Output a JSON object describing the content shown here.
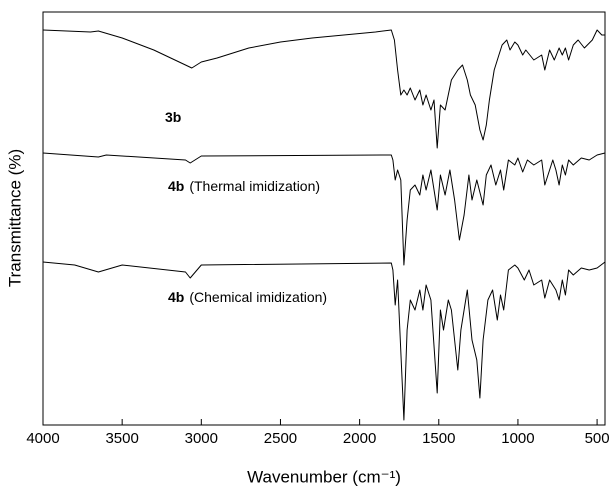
{
  "chart_data": {
    "type": "line",
    "xlabel": "Wavenumber (cm⁻¹)",
    "ylabel": "Transmittance (%)",
    "xlim": [
      4000,
      450
    ],
    "ylim": [
      0,
      413
    ],
    "xticks": [
      4000,
      3500,
      3000,
      2500,
      2000,
      1500,
      1000,
      500
    ],
    "annotations": [
      {
        "bold": "3b"
      },
      {
        "bold": "4b",
        "text": "(Thermal imidization)"
      },
      {
        "bold": "4b",
        "text": "(Chemical imidization)"
      }
    ],
    "series": [
      {
        "color": "#000000",
        "x": [
          4000,
          3700,
          3650,
          3500,
          3300,
          3100,
          3060,
          3000,
          2900,
          2700,
          2500,
          2300,
          2100,
          1900,
          1800,
          1780,
          1760,
          1740,
          1720,
          1700,
          1680,
          1650,
          1620,
          1600,
          1580,
          1550,
          1530,
          1510,
          1490,
          1460,
          1420,
          1380,
          1350,
          1320,
          1300,
          1270,
          1240,
          1220,
          1200,
          1180,
          1150,
          1120,
          1100,
          1070,
          1050,
          1020,
          1000,
          970,
          950,
          900,
          850,
          830,
          800,
          770,
          740,
          720,
          700,
          680,
          650,
          620,
          580,
          530,
          500,
          470,
          450
        ],
        "values": [
          395,
          393,
          394,
          387,
          375,
          360,
          357,
          363,
          367,
          377,
          383,
          387,
          390,
          393,
          395,
          385,
          355,
          330,
          335,
          330,
          337,
          325,
          335,
          320,
          330,
          315,
          325,
          277,
          320,
          315,
          345,
          355,
          360,
          345,
          330,
          320,
          295,
          285,
          300,
          325,
          355,
          370,
          380,
          385,
          375,
          383,
          380,
          370,
          375,
          365,
          370,
          355,
          375,
          365,
          377,
          370,
          377,
          365,
          380,
          385,
          377,
          385,
          395,
          390,
          390
        ]
      },
      {
        "color": "#000000",
        "x": [
          4000,
          3650,
          3600,
          3100,
          3070,
          3000,
          1800,
          1790,
          1775,
          1760,
          1740,
          1720,
          1700,
          1680,
          1650,
          1620,
          1600,
          1580,
          1550,
          1510,
          1490,
          1460,
          1430,
          1400,
          1370,
          1340,
          1310,
          1290,
          1260,
          1220,
          1200,
          1170,
          1140,
          1110,
          1090,
          1060,
          1020,
          1000,
          970,
          940,
          900,
          850,
          830,
          800,
          780,
          760,
          740,
          720,
          700,
          680,
          650,
          600,
          550,
          500,
          450
        ],
        "values": [
          272,
          268,
          270,
          265,
          262,
          269,
          270,
          265,
          245,
          255,
          245,
          160,
          205,
          235,
          240,
          230,
          250,
          235,
          255,
          215,
          250,
          230,
          255,
          225,
          185,
          210,
          250,
          225,
          245,
          220,
          250,
          260,
          240,
          255,
          235,
          265,
          260,
          267,
          253,
          265,
          260,
          265,
          240,
          255,
          265,
          255,
          240,
          260,
          250,
          265,
          260,
          267,
          265,
          270,
          272
        ]
      },
      {
        "color": "#000000",
        "x": [
          4000,
          3800,
          3650,
          3500,
          3100,
          3070,
          3000,
          1800,
          1790,
          1775,
          1760,
          1720,
          1700,
          1680,
          1650,
          1620,
          1600,
          1580,
          1550,
          1510,
          1490,
          1470,
          1440,
          1420,
          1380,
          1360,
          1320,
          1290,
          1260,
          1240,
          1220,
          1190,
          1160,
          1130,
          1110,
          1090,
          1060,
          1020,
          1000,
          960,
          930,
          900,
          850,
          830,
          800,
          760,
          740,
          720,
          700,
          680,
          650,
          600,
          550,
          500,
          450
        ],
        "values": [
          163,
          160,
          153,
          160,
          153,
          147,
          160,
          162,
          155,
          120,
          145,
          5,
          95,
          125,
          115,
          135,
          115,
          140,
          125,
          32,
          115,
          95,
          125,
          115,
          55,
          95,
          135,
          85,
          65,
          27,
          85,
          125,
          135,
          105,
          130,
          115,
          155,
          160,
          157,
          145,
          155,
          140,
          145,
          127,
          145,
          135,
          125,
          145,
          130,
          155,
          150,
          157,
          155,
          157,
          163
        ]
      }
    ]
  }
}
